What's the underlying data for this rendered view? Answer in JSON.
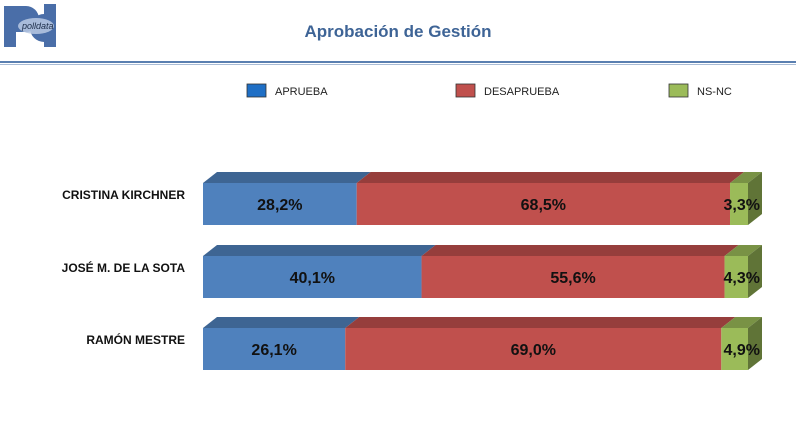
{
  "header": {
    "logo_text": "polldata",
    "title": "Aprobación de Gestión"
  },
  "colors": {
    "aprueba": "#4f81bd",
    "desaprueba": "#c0504d",
    "nsnc": "#9bbb59",
    "title": "#3e6496"
  },
  "chart_data": {
    "type": "bar",
    "orientation": "horizontal",
    "stacked": true,
    "percent_stacked": true,
    "style": "3d",
    "title": "Aprobación de Gestión",
    "categories": [
      "CRISTINA KIRCHNER",
      "JOSÉ M. DE LA SOTA",
      "RAMÓN MESTRE"
    ],
    "series": [
      {
        "name": "APRUEBA",
        "values": [
          28.2,
          40.1,
          26.1
        ],
        "labels": [
          "28,2%",
          "40,1%",
          "26,1%"
        ],
        "color": "#4f81bd"
      },
      {
        "name": "DESAPRUEBA",
        "values": [
          68.5,
          55.6,
          69.0
        ],
        "labels": [
          "68,5%",
          "55,6%",
          "69,0%"
        ],
        "color": "#c0504d"
      },
      {
        "name": "NS-NC",
        "values": [
          3.3,
          4.3,
          4.9
        ],
        "labels": [
          "3,3%",
          "4,3%",
          "4,9%"
        ],
        "color": "#9bbb59"
      }
    ],
    "legend": {
      "position": "top",
      "entries": [
        "APRUEBA",
        "DESAPRUEBA",
        "NS-NC"
      ],
      "swatch_colors": [
        "#1f6fc5",
        "#c0504d",
        "#9bbb59"
      ]
    },
    "xlabel": "",
    "ylabel": "",
    "xlim": [
      0,
      100
    ],
    "grid": false
  }
}
